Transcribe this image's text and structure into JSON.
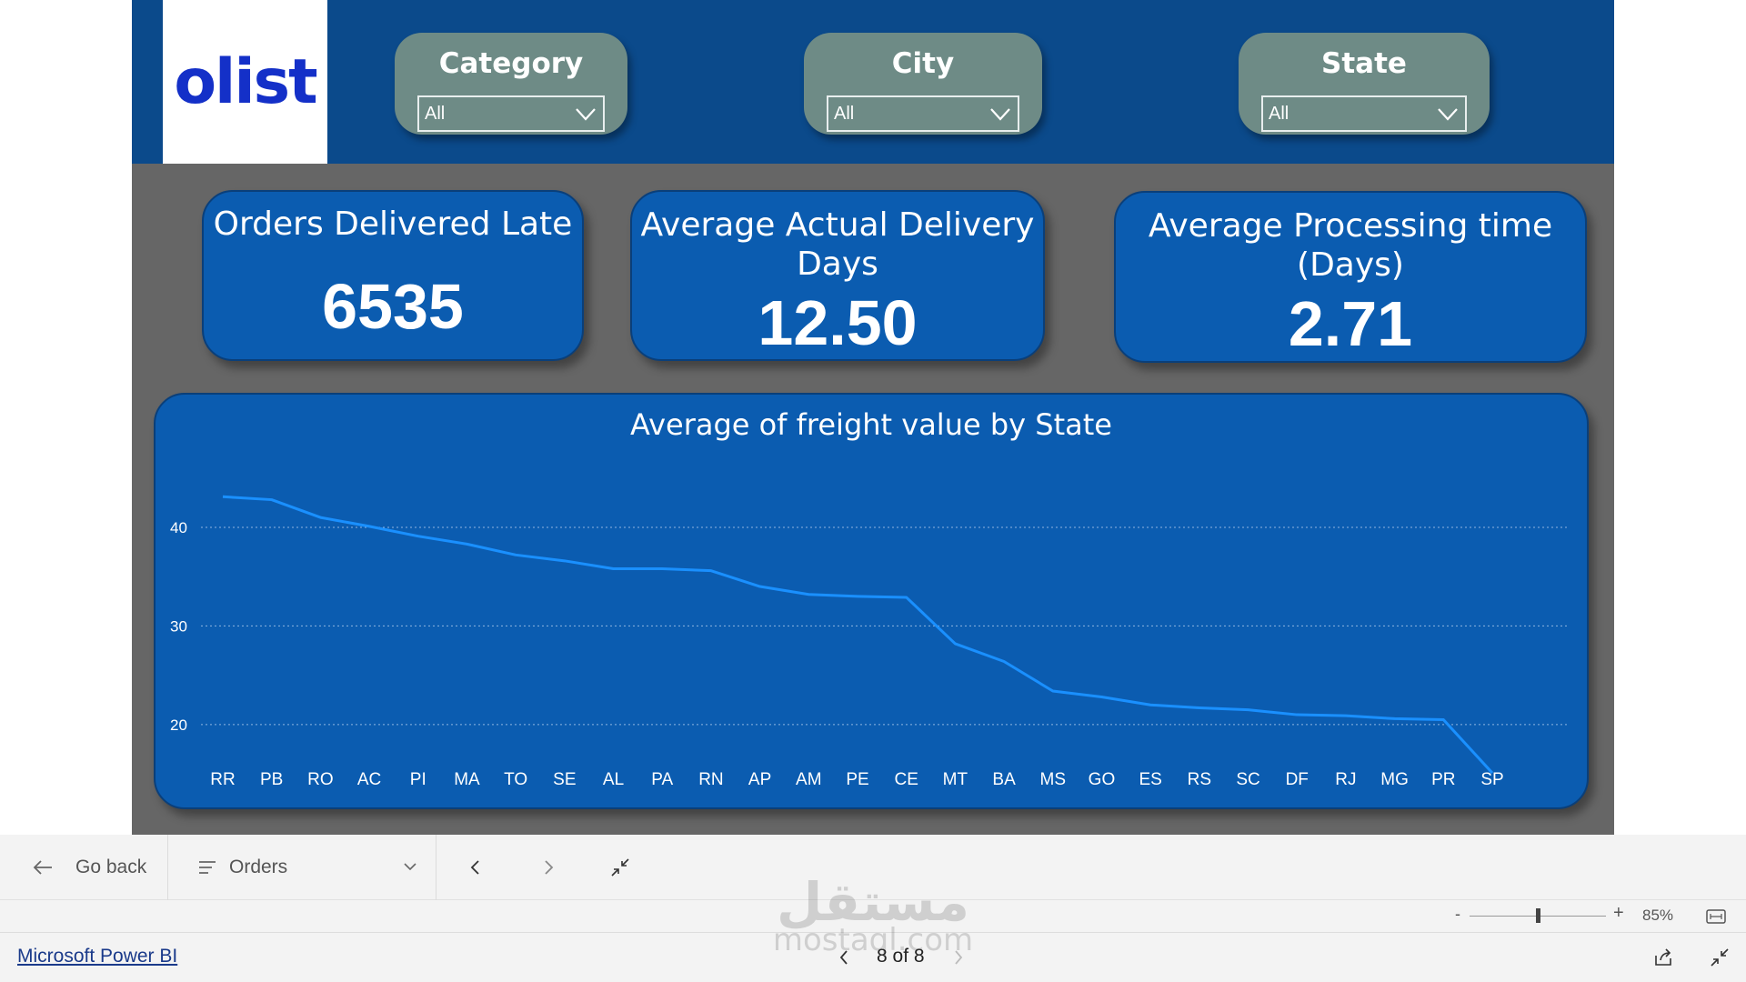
{
  "logo": {
    "text": "olist"
  },
  "slicers": [
    {
      "title": "Category",
      "value": "All"
    },
    {
      "title": "City",
      "value": "All"
    },
    {
      "title": "State",
      "value": "All"
    }
  ],
  "kpis": [
    {
      "title": "Orders Delivered Late",
      "value": "6535"
    },
    {
      "title_line1": "Average Actual Delivery",
      "title_line2": "Days",
      "value": "12.50"
    },
    {
      "title_line1": "Average Processing time",
      "title_line2": "(Days)",
      "value": "2.71"
    }
  ],
  "chart_data": {
    "type": "line",
    "title": "Average of freight value by State",
    "xlabel": "",
    "ylabel": "",
    "categories": [
      "RR",
      "PB",
      "RO",
      "AC",
      "PI",
      "MA",
      "TO",
      "SE",
      "AL",
      "PA",
      "RN",
      "AP",
      "AM",
      "PE",
      "CE",
      "MT",
      "BA",
      "MS",
      "GO",
      "ES",
      "RS",
      "SC",
      "DF",
      "RJ",
      "MG",
      "PR",
      "SP"
    ],
    "values": [
      43.1,
      42.8,
      41.0,
      40.1,
      39.1,
      38.3,
      37.2,
      36.6,
      35.8,
      35.8,
      35.6,
      34.0,
      33.2,
      33.0,
      32.9,
      28.2,
      26.4,
      23.4,
      22.8,
      22.0,
      21.7,
      21.5,
      21.0,
      20.9,
      20.6,
      20.5,
      15.1
    ],
    "yticks": [
      20,
      30,
      40
    ],
    "ylim": [
      14,
      47
    ],
    "grid": true,
    "line_color": "#1a90ff"
  },
  "toolbar": {
    "go_back": "Go back",
    "page_name": "Orders"
  },
  "zoom": {
    "percent": "85%",
    "level": 0.5
  },
  "footer": {
    "product_link": "Microsoft Power BI",
    "pager": "8 of 8"
  },
  "watermark": {
    "arabic": "مستقل",
    "latin": "mostaql.com"
  },
  "colors": {
    "header": "#0b4a8b",
    "card": "#0b5cb0",
    "slicer": "#6e8b86",
    "canvas": "#666666",
    "logo": "#1430c8"
  }
}
